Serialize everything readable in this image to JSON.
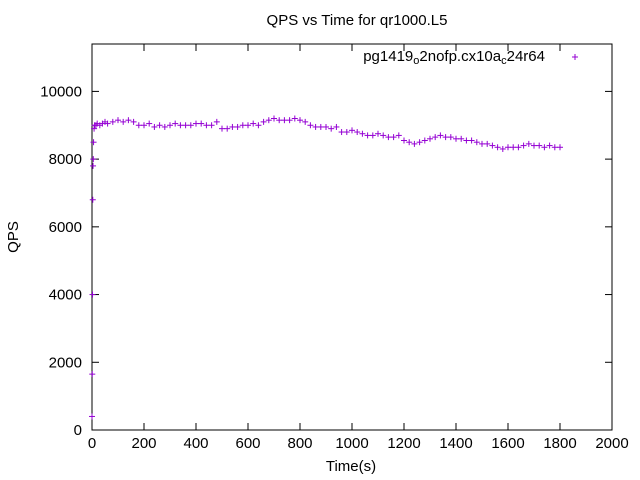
{
  "chart_data": {
    "type": "scatter",
    "title": "QPS vs Time for qr1000.L5",
    "xlabel": "Time(s)",
    "ylabel": "QPS",
    "xlim": [
      0,
      2000
    ],
    "ylim": [
      0,
      11400
    ],
    "xticks": [
      0,
      200,
      400,
      600,
      800,
      1000,
      1200,
      1400,
      1600,
      1800,
      2000
    ],
    "yticks": [
      0,
      2000,
      4000,
      6000,
      8000,
      10000
    ],
    "grid": false,
    "legend_position": "top-right",
    "series": [
      {
        "name_parts": [
          "pg1419",
          "o",
          "2nofp.cx10a",
          "c",
          "24r64"
        ],
        "color": "#9400d3",
        "marker": "plus",
        "x": [
          0,
          1,
          2,
          3,
          4,
          5,
          6,
          8,
          10,
          15,
          20,
          30,
          40,
          50,
          60,
          80,
          100,
          120,
          140,
          160,
          180,
          200,
          220,
          240,
          260,
          280,
          300,
          320,
          340,
          360,
          380,
          400,
          420,
          440,
          460,
          480,
          500,
          520,
          540,
          560,
          580,
          600,
          620,
          640,
          660,
          680,
          700,
          720,
          740,
          760,
          780,
          800,
          820,
          840,
          860,
          880,
          900,
          920,
          940,
          960,
          980,
          1000,
          1020,
          1040,
          1060,
          1080,
          1100,
          1120,
          1140,
          1160,
          1180,
          1200,
          1220,
          1240,
          1260,
          1280,
          1300,
          1320,
          1340,
          1360,
          1380,
          1400,
          1420,
          1440,
          1460,
          1480,
          1500,
          1520,
          1540,
          1560,
          1580,
          1600,
          1620,
          1640,
          1660,
          1680,
          1700,
          1720,
          1740,
          1760,
          1780,
          1800
        ],
        "y": [
          400,
          1650,
          4000,
          6800,
          7800,
          8000,
          8500,
          8900,
          9000,
          9000,
          9050,
          9000,
          9050,
          9100,
          9050,
          9100,
          9150,
          9100,
          9150,
          9100,
          9000,
          9000,
          9050,
          8950,
          9000,
          8950,
          9000,
          9050,
          9000,
          9000,
          9000,
          9050,
          9050,
          9000,
          9000,
          9100,
          8900,
          8900,
          8950,
          8950,
          9000,
          9000,
          9050,
          9000,
          9100,
          9150,
          9200,
          9150,
          9150,
          9150,
          9200,
          9150,
          9100,
          9000,
          8950,
          8950,
          8950,
          8900,
          8950,
          8800,
          8800,
          8850,
          8800,
          8750,
          8700,
          8700,
          8750,
          8700,
          8650,
          8650,
          8700,
          8550,
          8500,
          8450,
          8500,
          8550,
          8600,
          8650,
          8700,
          8650,
          8650,
          8600,
          8600,
          8550,
          8550,
          8500,
          8450,
          8450,
          8400,
          8350,
          8300,
          8350,
          8350,
          8350,
          8400,
          8450,
          8400,
          8400,
          8350,
          8400,
          8350,
          8350
        ]
      }
    ]
  }
}
